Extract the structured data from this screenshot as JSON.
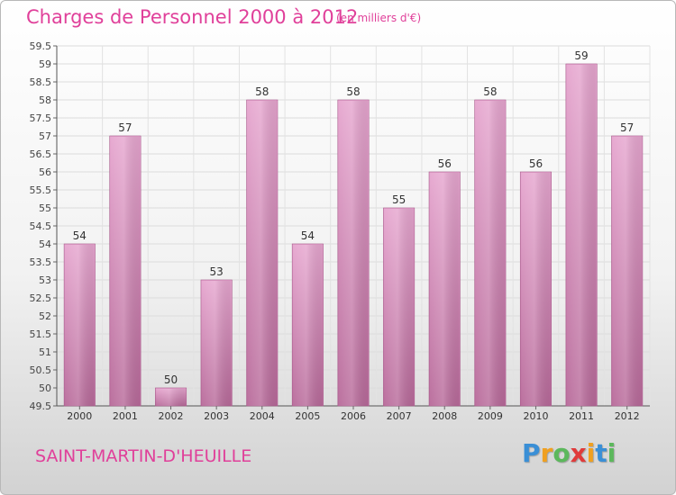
{
  "header": {
    "title": "Charges de Personnel 2000 à 2012",
    "subtitle": "(en milliers d'€)"
  },
  "footer": {
    "commune": "SAINT-MARTIN-D'HEUILLE",
    "brand_letters": [
      "P",
      "r",
      "o",
      "x",
      "i",
      "t",
      "i"
    ],
    "brand_colors": [
      "#3a8fd6",
      "#f0a020",
      "#5cb85c",
      "#e03a3a",
      "#f0a020",
      "#3a8fd6",
      "#5cb85c"
    ]
  },
  "chart_data": {
    "type": "bar",
    "categories": [
      "2000",
      "2001",
      "2002",
      "2003",
      "2004",
      "2005",
      "2006",
      "2007",
      "2008",
      "2009",
      "2010",
      "2011",
      "2012"
    ],
    "values": [
      54,
      57,
      50,
      53,
      58,
      54,
      58,
      55,
      56,
      58,
      56,
      59,
      57
    ],
    "data_labels": [
      "54",
      "57",
      "50",
      "53",
      "58",
      "54",
      "58",
      "55",
      "56",
      "58",
      "56",
      "59",
      "57"
    ],
    "ylim": [
      49.5,
      59.5
    ],
    "yticks": [
      "49.5",
      "50",
      "50.5",
      "51",
      "51.5",
      "52",
      "52.5",
      "53",
      "53.5",
      "54",
      "54.5",
      "55",
      "55.5",
      "56",
      "56.5",
      "57",
      "57.5",
      "58",
      "58.5",
      "59",
      "59.5"
    ],
    "grid": true,
    "bar_color": "#d98ab8"
  }
}
